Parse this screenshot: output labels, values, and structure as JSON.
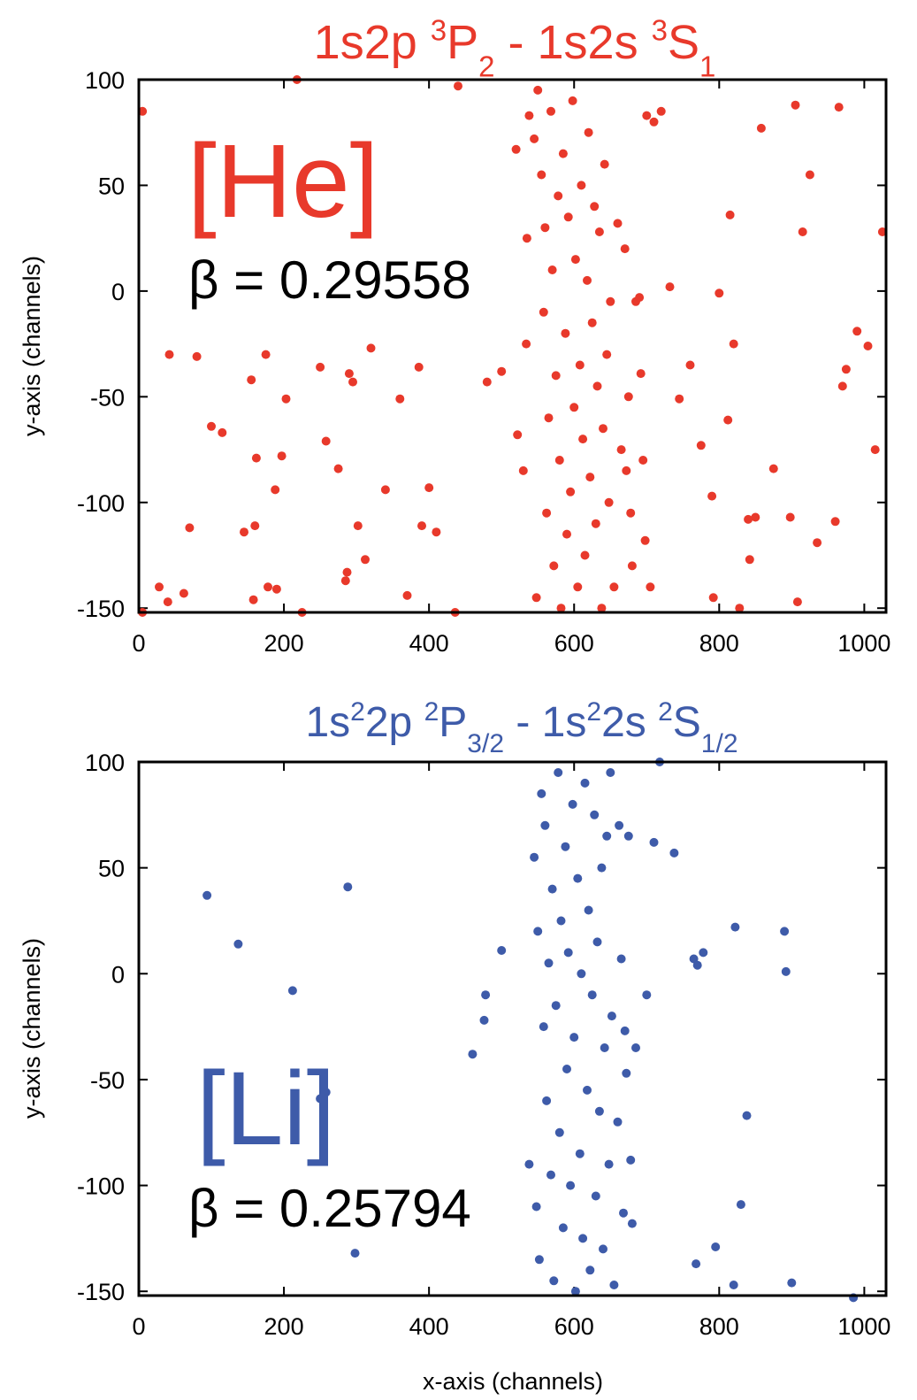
{
  "chart_data": [
    {
      "type": "scatter",
      "title_parts": [
        "1s2p ",
        "3",
        "P",
        "2",
        " - 1s2s ",
        "3",
        "S",
        "1"
      ],
      "ylabel": "y-axis (channels)",
      "xlabel": "",
      "xlim": [
        0,
        1030
      ],
      "ylim": [
        -152,
        100
      ],
      "xticks": [
        "0",
        "200",
        "400",
        "600",
        "800",
        "1000"
      ],
      "yticks": [
        "100",
        "50",
        "0",
        "-50",
        "-100",
        "-150"
      ],
      "grid": false,
      "color": "#e8392b",
      "annotation_element": "[He]",
      "annotation_beta": "β = 0.29558",
      "points": [
        [
          5,
          85
        ],
        [
          218,
          100
        ],
        [
          440,
          97
        ],
        [
          5,
          -152
        ],
        [
          28,
          -140
        ],
        [
          40,
          -147
        ],
        [
          62,
          -143
        ],
        [
          70,
          -112
        ],
        [
          42,
          -30
        ],
        [
          80,
          -31
        ],
        [
          100,
          -64
        ],
        [
          115,
          -67
        ],
        [
          145,
          -114
        ],
        [
          155,
          -42
        ],
        [
          160,
          -111
        ],
        [
          162,
          -79
        ],
        [
          158,
          -146
        ],
        [
          175,
          -30
        ],
        [
          178,
          -140
        ],
        [
          190,
          -141
        ],
        [
          188,
          -94
        ],
        [
          197,
          -78
        ],
        [
          203,
          -51
        ],
        [
          225,
          -152
        ],
        [
          250,
          -36
        ],
        [
          258,
          -71
        ],
        [
          275,
          -84
        ],
        [
          285,
          -137
        ],
        [
          287,
          -133
        ],
        [
          290,
          -39
        ],
        [
          295,
          -43
        ],
        [
          302,
          -111
        ],
        [
          312,
          -127
        ],
        [
          320,
          -27
        ],
        [
          340,
          -94
        ],
        [
          360,
          -51
        ],
        [
          370,
          -144
        ],
        [
          386,
          -36
        ],
        [
          390,
          -111
        ],
        [
          400,
          -93
        ],
        [
          410,
          -114
        ],
        [
          436,
          -152
        ],
        [
          480,
          -43
        ],
        [
          500,
          -38
        ],
        [
          520,
          67
        ],
        [
          522,
          -68
        ],
        [
          530,
          -85
        ],
        [
          535,
          25
        ],
        [
          534,
          -25
        ],
        [
          538,
          83
        ],
        [
          545,
          72
        ],
        [
          548,
          -145
        ],
        [
          550,
          95
        ],
        [
          555,
          55
        ],
        [
          558,
          -10
        ],
        [
          560,
          30
        ],
        [
          562,
          -105
        ],
        [
          565,
          -60
        ],
        [
          568,
          85
        ],
        [
          570,
          10
        ],
        [
          572,
          -130
        ],
        [
          575,
          -40
        ],
        [
          578,
          45
        ],
        [
          580,
          -80
        ],
        [
          582,
          -150
        ],
        [
          585,
          65
        ],
        [
          588,
          -20
        ],
        [
          590,
          -115
        ],
        [
          592,
          35
        ],
        [
          595,
          -95
        ],
        [
          598,
          90
        ],
        [
          600,
          -55
        ],
        [
          602,
          15
        ],
        [
          605,
          -140
        ],
        [
          608,
          -35
        ],
        [
          610,
          50
        ],
        [
          612,
          -70
        ],
        [
          615,
          -125
        ],
        [
          618,
          5
        ],
        [
          620,
          75
        ],
        [
          622,
          -88
        ],
        [
          625,
          -15
        ],
        [
          628,
          40
        ],
        [
          630,
          -110
        ],
        [
          632,
          -45
        ],
        [
          635,
          28
        ],
        [
          638,
          -150
        ],
        [
          640,
          -65
        ],
        [
          642,
          60
        ],
        [
          645,
          -30
        ],
        [
          648,
          -100
        ],
        [
          650,
          -5
        ],
        [
          655,
          -140
        ],
        [
          660,
          32
        ],
        [
          665,
          -75
        ],
        [
          670,
          20
        ],
        [
          672,
          -85
        ],
        [
          675,
          -50
        ],
        [
          678,
          -105
        ],
        [
          680,
          -130
        ],
        [
          685,
          -5
        ],
        [
          690,
          -3
        ],
        [
          692,
          -39
        ],
        [
          695,
          -80
        ],
        [
          698,
          -118
        ],
        [
          700,
          83
        ],
        [
          705,
          -140
        ],
        [
          710,
          80
        ],
        [
          720,
          85
        ],
        [
          732,
          2
        ],
        [
          745,
          -51
        ],
        [
          760,
          -35
        ],
        [
          775,
          -73
        ],
        [
          790,
          -97
        ],
        [
          792,
          -145
        ],
        [
          800,
          -1
        ],
        [
          812,
          -61
        ],
        [
          815,
          36
        ],
        [
          820,
          -25
        ],
        [
          828,
          -150
        ],
        [
          840,
          -108
        ],
        [
          842,
          -127
        ],
        [
          850,
          -107
        ],
        [
          858,
          77
        ],
        [
          875,
          -84
        ],
        [
          898,
          -107
        ],
        [
          905,
          88
        ],
        [
          908,
          -147
        ],
        [
          915,
          28
        ],
        [
          925,
          55
        ],
        [
          935,
          -119
        ],
        [
          960,
          -109
        ],
        [
          965,
          87
        ],
        [
          970,
          -45
        ],
        [
          975,
          -37
        ],
        [
          990,
          -19
        ],
        [
          1005,
          -26
        ],
        [
          1015,
          -75
        ],
        [
          1025,
          28
        ]
      ]
    },
    {
      "type": "scatter",
      "title_parts": [
        "1s",
        "2",
        "2p ",
        "2",
        "P",
        "3/2",
        " - 1s",
        "2",
        "2s ",
        "2",
        "S",
        "1/2"
      ],
      "ylabel": "y-axis (channels)",
      "xlabel": "x-axis (channels)",
      "xlim": [
        0,
        1030
      ],
      "ylim": [
        -152,
        100
      ],
      "xticks": [
        "0",
        "200",
        "400",
        "600",
        "800",
        "1000"
      ],
      "yticks": [
        "100",
        "50",
        "0",
        "-50",
        "-100",
        "-150"
      ],
      "grid": false,
      "color": "#3e5ba9",
      "annotation_element": "[Li]",
      "annotation_beta": "β = 0.25794",
      "points": [
        [
          94,
          37
        ],
        [
          137,
          14
        ],
        [
          212,
          -8
        ],
        [
          250,
          -59
        ],
        [
          258,
          -56
        ],
        [
          288,
          41
        ],
        [
          298,
          -132
        ],
        [
          460,
          -38
        ],
        [
          476,
          -22
        ],
        [
          478,
          -10
        ],
        [
          500,
          11
        ],
        [
          538,
          -90
        ],
        [
          545,
          55
        ],
        [
          548,
          -110
        ],
        [
          550,
          20
        ],
        [
          552,
          -135
        ],
        [
          555,
          85
        ],
        [
          558,
          -25
        ],
        [
          560,
          70
        ],
        [
          562,
          -60
        ],
        [
          565,
          5
        ],
        [
          568,
          -95
        ],
        [
          570,
          40
        ],
        [
          572,
          -145
        ],
        [
          575,
          -15
        ],
        [
          578,
          95
        ],
        [
          580,
          -75
        ],
        [
          582,
          25
        ],
        [
          585,
          -120
        ],
        [
          588,
          60
        ],
        [
          590,
          -45
        ],
        [
          592,
          10
        ],
        [
          595,
          -100
        ],
        [
          598,
          80
        ],
        [
          600,
          -30
        ],
        [
          602,
          -150
        ],
        [
          605,
          45
        ],
        [
          608,
          -85
        ],
        [
          610,
          0
        ],
        [
          612,
          -125
        ],
        [
          615,
          90
        ],
        [
          618,
          -55
        ],
        [
          620,
          30
        ],
        [
          622,
          -140
        ],
        [
          625,
          -10
        ],
        [
          628,
          75
        ],
        [
          630,
          -105
        ],
        [
          632,
          15
        ],
        [
          635,
          -65
        ],
        [
          638,
          50
        ],
        [
          640,
          -130
        ],
        [
          642,
          -35
        ],
        [
          645,
          65
        ],
        [
          648,
          -90
        ],
        [
          650,
          95
        ],
        [
          652,
          -20
        ],
        [
          655,
          -147
        ],
        [
          660,
          -70
        ],
        [
          662,
          70
        ],
        [
          665,
          7
        ],
        [
          668,
          -113
        ],
        [
          670,
          -27
        ],
        [
          672,
          -47
        ],
        [
          675,
          65
        ],
        [
          678,
          -88
        ],
        [
          680,
          -118
        ],
        [
          685,
          -35
        ],
        [
          700,
          -10
        ],
        [
          718,
          100
        ],
        [
          710,
          62
        ],
        [
          738,
          57
        ],
        [
          765,
          7
        ],
        [
          770,
          4
        ],
        [
          778,
          10
        ],
        [
          768,
          -137
        ],
        [
          795,
          -129
        ],
        [
          820,
          -147
        ],
        [
          822,
          22
        ],
        [
          830,
          -109
        ],
        [
          838,
          -67
        ],
        [
          890,
          20
        ],
        [
          892,
          1
        ],
        [
          900,
          -146
        ],
        [
          985,
          -153
        ]
      ]
    }
  ]
}
